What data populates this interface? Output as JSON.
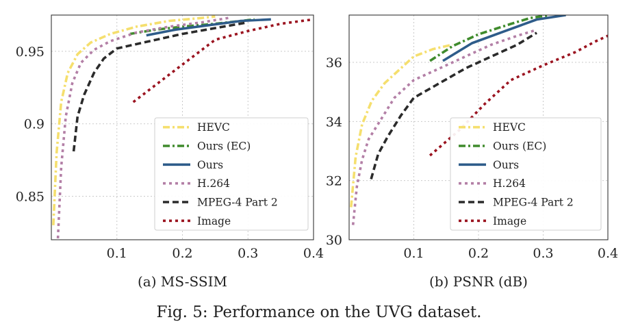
{
  "figure": {
    "caption": "Fig. 5: Performance on the UVG dataset."
  },
  "chart_data": [
    {
      "type": "line",
      "subcaption": "(a) MS-SSIM",
      "xlabel": "",
      "ylabel": "",
      "xlim": [
        0.0,
        0.4
      ],
      "ylim": [
        0.82,
        0.975
      ],
      "xticks": [
        0.1,
        0.2,
        0.3,
        0.4
      ],
      "xtick_labels": [
        "0.1",
        "0.2",
        "0.3",
        "0.4"
      ],
      "yticks": [
        0.85,
        0.9,
        0.95
      ],
      "ytick_labels": [
        "0.85",
        "0.9",
        "0.95"
      ],
      "grid": true,
      "legend_position": "bottom-right",
      "series": [
        {
          "name": "HEVC",
          "color": "#f5df6e",
          "dash": "dashdot",
          "x": [
            0.003,
            0.008,
            0.015,
            0.025,
            0.04,
            0.06,
            0.09,
            0.13,
            0.18,
            0.23,
            0.25
          ],
          "y": [
            0.83,
            0.88,
            0.915,
            0.935,
            0.948,
            0.956,
            0.962,
            0.967,
            0.971,
            0.973,
            0.974
          ]
        },
        {
          "name": "Ours (EC)",
          "color": "#3f8b2c",
          "dash": "dashdot",
          "x": [
            0.12,
            0.16,
            0.2,
            0.25,
            0.29,
            0.31
          ],
          "y": [
            0.962,
            0.965,
            0.967,
            0.969,
            0.971,
            0.972
          ]
        },
        {
          "name": "Ours",
          "color": "#2e5c8a",
          "dash": "solid",
          "x": [
            0.145,
            0.19,
            0.24,
            0.29,
            0.335
          ],
          "y": [
            0.961,
            0.965,
            0.968,
            0.971,
            0.972
          ]
        },
        {
          "name": "H.264",
          "color": "#b37fa6",
          "dash": "dot",
          "x": [
            0.01,
            0.015,
            0.022,
            0.032,
            0.045,
            0.065,
            0.09,
            0.13,
            0.18,
            0.23,
            0.27
          ],
          "y": [
            0.821,
            0.87,
            0.905,
            0.928,
            0.942,
            0.951,
            0.957,
            0.963,
            0.967,
            0.97,
            0.973
          ]
        },
        {
          "name": "MPEG-4 Part 2",
          "color": "#2b2b2b",
          "dash": "dash",
          "x": [
            0.034,
            0.04,
            0.05,
            0.065,
            0.08,
            0.1,
            0.15,
            0.2,
            0.25,
            0.3
          ],
          "y": [
            0.881,
            0.905,
            0.92,
            0.935,
            0.945,
            0.952,
            0.957,
            0.962,
            0.966,
            0.97
          ]
        },
        {
          "name": "Image",
          "color": "#9b1420",
          "dash": "dot",
          "x": [
            0.125,
            0.18,
            0.25,
            0.3,
            0.35,
            0.4
          ],
          "y": [
            0.915,
            0.934,
            0.958,
            0.964,
            0.969,
            0.972
          ]
        }
      ]
    },
    {
      "type": "line",
      "subcaption": "(b) PSNR (dB)",
      "xlabel": "",
      "ylabel": "",
      "xlim": [
        0.0,
        0.4
      ],
      "ylim": [
        30,
        37.6
      ],
      "xticks": [
        0.1,
        0.2,
        0.3,
        0.4
      ],
      "xtick_labels": [
        "0.1",
        "0.2",
        "0.3",
        "0.4"
      ],
      "yticks": [
        30,
        32,
        34,
        36
      ],
      "ytick_labels": [
        "30",
        "32",
        "34",
        "36"
      ],
      "grid": true,
      "legend_position": "bottom-right",
      "series": [
        {
          "name": "HEVC",
          "color": "#f5df6e",
          "dash": "dashdot",
          "x": [
            0.003,
            0.01,
            0.02,
            0.035,
            0.055,
            0.08,
            0.1,
            0.13,
            0.16
          ],
          "y": [
            31.1,
            32.8,
            33.9,
            34.7,
            35.3,
            35.8,
            36.2,
            36.45,
            36.6
          ]
        },
        {
          "name": "Ours (EC)",
          "color": "#3f8b2c",
          "dash": "dashdot",
          "x": [
            0.125,
            0.16,
            0.2,
            0.25,
            0.28,
            0.31
          ],
          "y": [
            36.05,
            36.55,
            36.95,
            37.3,
            37.5,
            37.6
          ]
        },
        {
          "name": "Ours",
          "color": "#2e5c8a",
          "dash": "solid",
          "x": [
            0.145,
            0.19,
            0.24,
            0.29,
            0.335
          ],
          "y": [
            36.05,
            36.65,
            37.05,
            37.45,
            37.6
          ]
        },
        {
          "name": "H.264",
          "color": "#b37fa6",
          "dash": "dot",
          "x": [
            0.006,
            0.012,
            0.02,
            0.03,
            0.05,
            0.07,
            0.1,
            0.14,
            0.18,
            0.22,
            0.26,
            0.29
          ],
          "y": [
            30.5,
            31.8,
            32.7,
            33.4,
            34.1,
            34.8,
            35.4,
            35.8,
            36.2,
            36.6,
            36.9,
            37.1
          ]
        },
        {
          "name": "MPEG-4 Part 2",
          "color": "#2b2b2b",
          "dash": "dash",
          "x": [
            0.034,
            0.045,
            0.06,
            0.08,
            0.1,
            0.14,
            0.18,
            0.22,
            0.26,
            0.29
          ],
          "y": [
            32.05,
            32.9,
            33.5,
            34.2,
            34.8,
            35.3,
            35.8,
            36.2,
            36.6,
            37.0
          ]
        },
        {
          "name": "Image",
          "color": "#9b1420",
          "dash": "dot",
          "x": [
            0.125,
            0.17,
            0.21,
            0.25,
            0.3,
            0.35,
            0.38,
            0.4
          ],
          "y": [
            32.85,
            33.7,
            34.6,
            35.4,
            35.9,
            36.35,
            36.7,
            36.9
          ]
        }
      ]
    }
  ]
}
